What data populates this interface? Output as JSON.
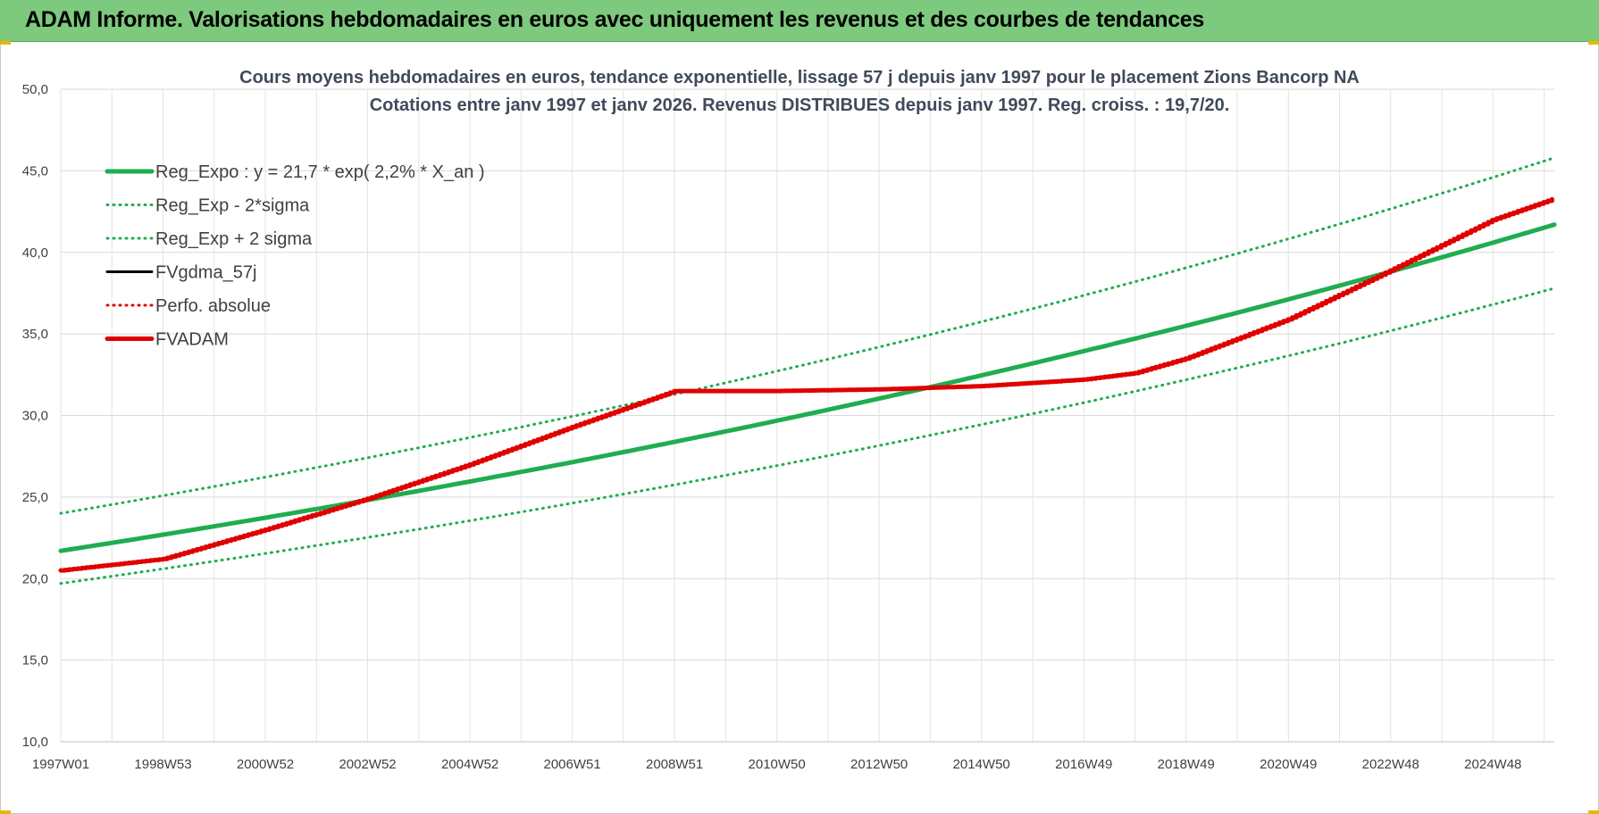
{
  "banner": {
    "title": "ADAM Informe. Valorisations hebdomadaires en euros avec uniquement les revenus et des courbes de tendances",
    "color": "#7dc97d"
  },
  "chart_data": {
    "type": "line",
    "title": "Cours moyens hebdomadaires en euros, tendance exponentielle, lissage 57 j depuis janv 1997 pour le placement Zions Bancorp NA",
    "subtitle": "Cotations entre janv 1997 et janv 2026. Revenus DISTRIBUES depuis janv 1997. Reg. croiss. : 19,7/20.",
    "xlabel": "",
    "ylabel": "",
    "ylim": [
      10,
      50
    ],
    "xlim": [
      1997.0,
      2026.2
    ],
    "y_ticks": [
      "10,0",
      "15,0",
      "20,0",
      "25,0",
      "30,0",
      "35,0",
      "40,0",
      "45,0",
      "50,0"
    ],
    "y_tick_values": [
      10,
      15,
      20,
      25,
      30,
      35,
      40,
      45,
      50
    ],
    "x_tick_labels": [
      "1997W01",
      "1998W53",
      "2000W52",
      "2002W52",
      "2004W52",
      "2006W51",
      "2008W51",
      "2010W50",
      "2012W50",
      "2014W50",
      "2016W49",
      "2018W49",
      "2020W49",
      "2022W48",
      "2024W48"
    ],
    "x_tick_years": [
      1997,
      1999,
      2001,
      2003,
      2005,
      2007,
      2009,
      2011,
      2013,
      2015,
      2017,
      2019,
      2021,
      2023,
      2025
    ],
    "grid": true,
    "legend_position": "top-left",
    "series": [
      {
        "name": "Reg_Expo : y = 21,7 * exp( 2,2% *  X_an )",
        "color": "#1fad4f",
        "style": "solid-thick",
        "x": [
          1997,
          2001,
          2005,
          2009,
          2013,
          2017,
          2021,
          2026.2
        ],
        "y": [
          21.7,
          23.7,
          25.9,
          28.4,
          31.0,
          33.9,
          37.1,
          41.7
        ]
      },
      {
        "name": "Reg_Exp - 2*sigma",
        "color": "#1fad4f",
        "style": "dotted",
        "x": [
          1997,
          2001,
          2005,
          2009,
          2013,
          2017,
          2021,
          2026.2
        ],
        "y": [
          19.7,
          21.6,
          23.6,
          25.8,
          28.2,
          30.8,
          33.7,
          37.8
        ]
      },
      {
        "name": "Reg_Exp + 2 sigma",
        "color": "#1fad4f",
        "style": "dotted",
        "x": [
          1997,
          2001,
          2005,
          2009,
          2013,
          2017,
          2021,
          2026.2
        ],
        "y": [
          24.0,
          26.2,
          28.6,
          31.3,
          34.2,
          37.4,
          40.8,
          45.8
        ]
      },
      {
        "name": "FVgdma_57j",
        "color": "#000000",
        "style": "solid",
        "x": [],
        "y": []
      },
      {
        "name": "Perfo. absolue",
        "color": "#e00000",
        "style": "dotted",
        "x": [],
        "y": []
      },
      {
        "name": "FVADAM",
        "color": "#e00000",
        "style": "solid-thick",
        "x": [
          1997,
          1999,
          2001,
          2003,
          2005,
          2007,
          2009,
          2011,
          2013,
          2015,
          2017,
          2018,
          2019,
          2021,
          2023,
          2025,
          2026.2
        ],
        "y": [
          20.5,
          21.2,
          23.0,
          24.9,
          27.0,
          29.3,
          31.5,
          31.5,
          31.6,
          31.8,
          32.2,
          32.6,
          33.5,
          35.9,
          38.9,
          42.0,
          43.3
        ]
      }
    ]
  }
}
